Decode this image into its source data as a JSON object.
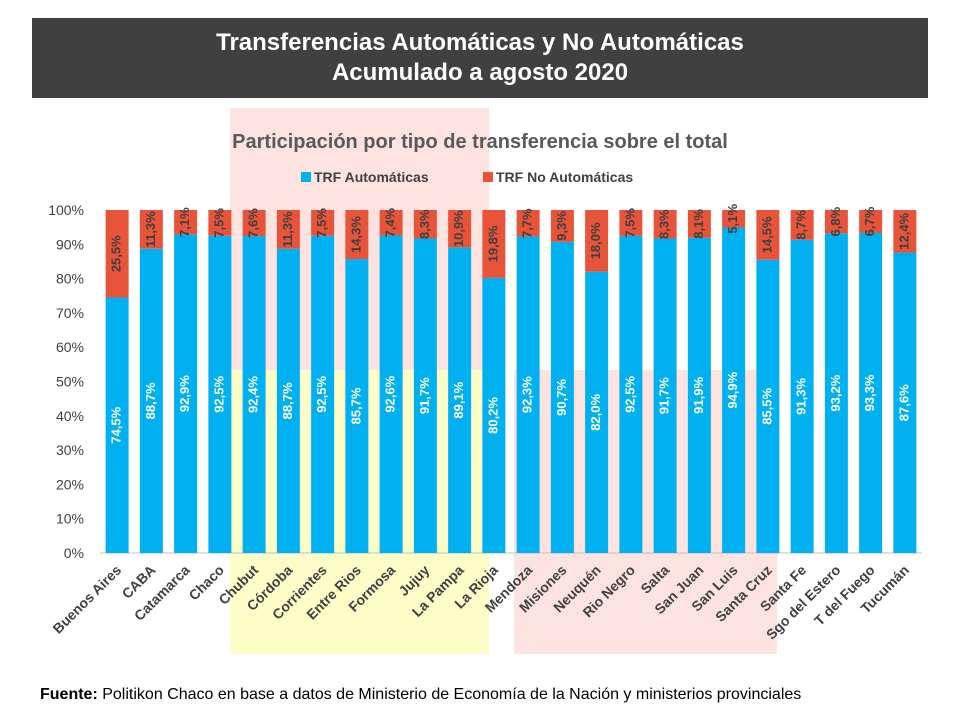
{
  "header": {
    "title_line1": "Transferencias Automáticas y No Automáticas",
    "title_line2": "Acumulado a agosto 2020"
  },
  "source": {
    "label": "Fuente:",
    "text": "Politikon Chaco en base a datos de Ministerio de Economía de la Nación y ministerios provinciales"
  },
  "chart_data": {
    "type": "bar",
    "stacked": true,
    "title": "Participación por tipo de transferencia sobre el total",
    "legend_position": "top",
    "categories": [
      "Buenos Aires",
      "CABA",
      "Catamarca",
      "Chaco",
      "Chubut",
      "Córdoba",
      "Corrientes",
      "Entre Rios",
      "Formosa",
      "Jujuy",
      "La Pampa",
      "La Rioja",
      "Mendoza",
      "Misiones",
      "Neuquén",
      "Rio Negro",
      "Salta",
      "San Juan",
      "San Luis",
      "Santa Cruz",
      "Santa Fe",
      "Sgo del Estero",
      "T del Fuego",
      "Tucumán"
    ],
    "series": [
      {
        "name": "TRF Automáticas",
        "color": "#00b0f0",
        "values": [
          74.5,
          88.7,
          92.9,
          92.5,
          92.4,
          88.7,
          92.5,
          85.7,
          92.6,
          91.7,
          89.1,
          80.2,
          92.3,
          90.7,
          82.0,
          92.5,
          91.7,
          91.9,
          94.9,
          85.5,
          91.3,
          93.2,
          93.3,
          87.6
        ],
        "labels": [
          "74,5%",
          "88,7%",
          "92,9%",
          "92,5%",
          "92,4%",
          "88,7%",
          "92,5%",
          "85,7%",
          "92,6%",
          "91,7%",
          "89,1%",
          "80,2%",
          "92,3%",
          "90,7%",
          "82,0%",
          "92,5%",
          "91,7%",
          "91,9%",
          "94,9%",
          "85,5%",
          "91,3%",
          "93,2%",
          "93,3%",
          "87,6%"
        ]
      },
      {
        "name": "TRF No Automáticas",
        "color": "#e8543a",
        "values": [
          25.5,
          11.3,
          7.1,
          7.5,
          7.6,
          11.3,
          7.5,
          14.3,
          7.4,
          8.3,
          10.9,
          19.8,
          7.7,
          9.3,
          18.0,
          7.5,
          8.3,
          8.1,
          5.1,
          14.5,
          8.7,
          6.8,
          6.7,
          12.4
        ],
        "labels": [
          "25,5%",
          "11,3%",
          "7,1%",
          "7,5%",
          "7,6%",
          "11,3%",
          "7,5%",
          "14,3%",
          "7,4%",
          "8,3%",
          "10,9%",
          "19,8%",
          "7,7%",
          "9,3%",
          "18,0%",
          "7,5%",
          "8,3%",
          "8,1%",
          "5,1%",
          "14,5%",
          "8,7%",
          "6,8%",
          "6,7%",
          "12,4%"
        ]
      }
    ],
    "yticks": [
      "0%",
      "10%",
      "20%",
      "30%",
      "40%",
      "50%",
      "60%",
      "70%",
      "80%",
      "90%",
      "100%"
    ],
    "ylim": [
      0,
      100
    ],
    "grid": false,
    "colors": {
      "region_pink": "#fde3df",
      "region_yellow": "#fdfdc8",
      "axis": "#bfbfbf",
      "title": "#595959"
    }
  }
}
